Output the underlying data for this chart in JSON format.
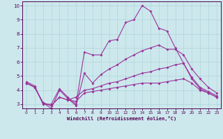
{
  "xlabel": "Windchill (Refroidissement éolien,°C)",
  "xlim": [
    -0.5,
    23.5
  ],
  "ylim": [
    2.7,
    10.3
  ],
  "xticks": [
    0,
    1,
    2,
    3,
    4,
    5,
    6,
    7,
    8,
    9,
    10,
    11,
    12,
    13,
    14,
    15,
    16,
    17,
    18,
    19,
    20,
    21,
    22,
    23
  ],
  "yticks": [
    3,
    4,
    5,
    6,
    7,
    8,
    9,
    10
  ],
  "background_color": "#cce8ed",
  "grid_color": "#b0d4d8",
  "line_color": "#993399",
  "line1_x": [
    0,
    1,
    2,
    3,
    4,
    5,
    6,
    7,
    8,
    9,
    10,
    11,
    12,
    13,
    14,
    15,
    16,
    17,
    18,
    19,
    20,
    21,
    22,
    23
  ],
  "line1_y": [
    4.6,
    4.3,
    3.0,
    3.0,
    4.1,
    3.5,
    3.0,
    6.7,
    6.5,
    6.5,
    7.5,
    7.6,
    8.8,
    9.0,
    10.0,
    9.6,
    8.4,
    8.2,
    7.0,
    5.9,
    4.8,
    4.1,
    3.8,
    3.5
  ],
  "line2_x": [
    0,
    1,
    2,
    3,
    4,
    5,
    6,
    7,
    8,
    9,
    10,
    11,
    12,
    13,
    14,
    15,
    16,
    17,
    18,
    19,
    20,
    21,
    22,
    23
  ],
  "line2_y": [
    4.5,
    4.2,
    3.1,
    2.7,
    4.0,
    3.4,
    2.9,
    5.2,
    4.5,
    5.1,
    5.5,
    5.8,
    6.2,
    6.5,
    6.8,
    7.0,
    7.2,
    6.9,
    6.9,
    6.5,
    5.5,
    4.8,
    4.2,
    3.8
  ],
  "line3_x": [
    0,
    1,
    2,
    3,
    4,
    5,
    6,
    7,
    8,
    9,
    10,
    11,
    12,
    13,
    14,
    15,
    16,
    17,
    18,
    19,
    20,
    21,
    22,
    23
  ],
  "line3_y": [
    4.5,
    4.2,
    3.1,
    2.9,
    3.5,
    3.3,
    3.5,
    4.0,
    4.1,
    4.3,
    4.5,
    4.6,
    4.8,
    5.0,
    5.2,
    5.3,
    5.5,
    5.6,
    5.8,
    5.9,
    4.9,
    4.2,
    3.9,
    3.6
  ],
  "line4_x": [
    0,
    1,
    2,
    3,
    4,
    5,
    6,
    7,
    8,
    9,
    10,
    11,
    12,
    13,
    14,
    15,
    16,
    17,
    18,
    19,
    20,
    21,
    22,
    23
  ],
  "line4_y": [
    4.5,
    4.2,
    3.1,
    2.9,
    3.5,
    3.3,
    3.2,
    3.8,
    3.9,
    4.0,
    4.1,
    4.2,
    4.3,
    4.4,
    4.5,
    4.5,
    4.5,
    4.6,
    4.7,
    4.8,
    4.5,
    4.0,
    3.8,
    3.5
  ]
}
